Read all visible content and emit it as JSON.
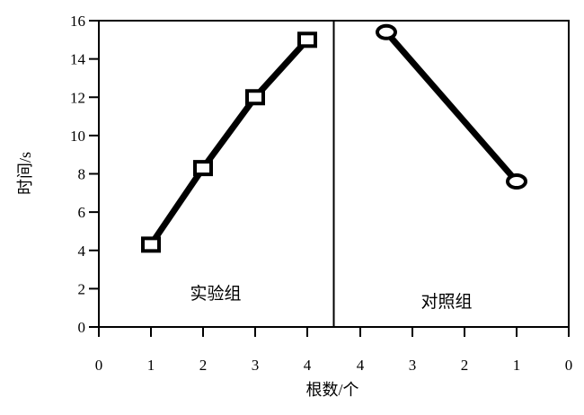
{
  "chart_data": {
    "type": "line",
    "title": "",
    "xlabel": "根数/个",
    "ylabel": "时间/s",
    "ylim": [
      0,
      16
    ],
    "yticks": [
      0,
      2,
      4,
      6,
      8,
      10,
      12,
      14,
      16
    ],
    "x_tick_labels": [
      "0",
      "1",
      "2",
      "3",
      "4",
      "4",
      "3",
      "2",
      "1",
      "0"
    ],
    "grid": false,
    "panels": [
      {
        "name": "实验组",
        "x": [
          1,
          2,
          3,
          4
        ],
        "y": [
          4.3,
          8.3,
          12.0,
          15.0
        ],
        "marker": "square"
      },
      {
        "name": "对照组",
        "x": [
          3.5,
          1
        ],
        "y": [
          15.4,
          7.6
        ],
        "marker": "circle"
      }
    ]
  }
}
